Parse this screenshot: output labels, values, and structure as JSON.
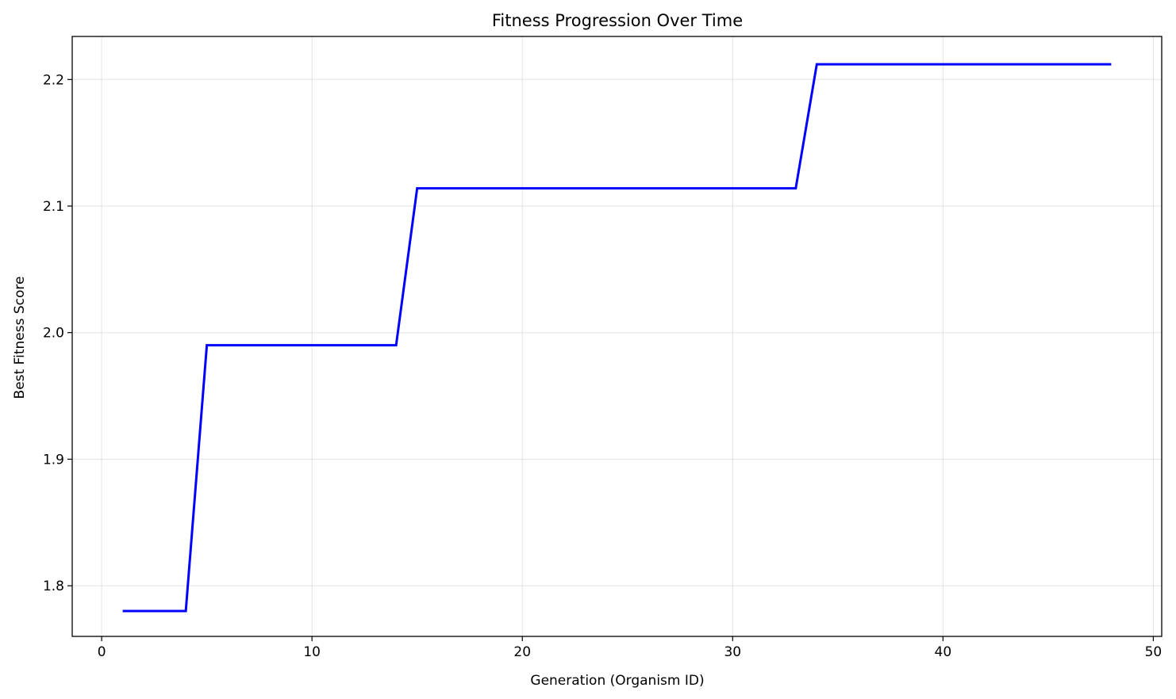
{
  "chart_data": {
    "type": "line",
    "title": "Fitness Progression Over Time",
    "xlabel": "Generation (Organism ID)",
    "ylabel": "Best Fitness Score",
    "xlim": [
      -1.4,
      50.4
    ],
    "ylim": [
      1.76,
      2.234
    ],
    "xticks": [
      0,
      10,
      20,
      30,
      40,
      50
    ],
    "xtick_labels": [
      "0",
      "10",
      "20",
      "30",
      "40",
      "50"
    ],
    "yticks": [
      1.8,
      1.9,
      2.0,
      2.1,
      2.2
    ],
    "ytick_labels": [
      "1.8",
      "1.9",
      "2.0",
      "2.1",
      "2.2"
    ],
    "grid": true,
    "legend": "none",
    "series": [
      {
        "color": "#0000ff",
        "x": [
          1,
          2,
          3,
          4,
          5,
          6,
          7,
          8,
          9,
          10,
          11,
          12,
          13,
          14,
          15,
          16,
          17,
          18,
          19,
          20,
          21,
          22,
          23,
          24,
          25,
          26,
          27,
          28,
          29,
          30,
          31,
          32,
          33,
          34,
          35,
          36,
          37,
          38,
          39,
          40,
          41,
          42,
          43,
          44,
          45,
          46,
          47,
          48
        ],
        "y": [
          1.78,
          1.78,
          1.78,
          1.78,
          1.99,
          1.99,
          1.99,
          1.99,
          1.99,
          1.99,
          1.99,
          1.99,
          1.99,
          1.99,
          2.114,
          2.114,
          2.114,
          2.114,
          2.114,
          2.114,
          2.114,
          2.114,
          2.114,
          2.114,
          2.114,
          2.114,
          2.114,
          2.114,
          2.114,
          2.114,
          2.114,
          2.114,
          2.114,
          2.212,
          2.212,
          2.212,
          2.212,
          2.212,
          2.212,
          2.212,
          2.212,
          2.212,
          2.212,
          2.212,
          2.212,
          2.212,
          2.212,
          2.212
        ]
      }
    ]
  }
}
